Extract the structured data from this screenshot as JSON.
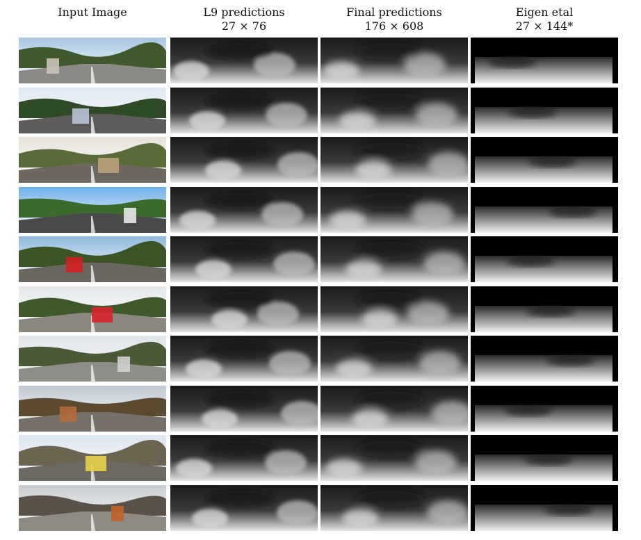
{
  "columns": [
    {
      "id": "input",
      "title": "Input Image",
      "subtitle": ""
    },
    {
      "id": "l9",
      "title": "L9 predictions",
      "subtitle": "27 × 76"
    },
    {
      "id": "final",
      "title": "Final predictions",
      "subtitle": "176 × 608"
    },
    {
      "id": "eigen",
      "title": "Eigen etal",
      "subtitle": "27 × 144*"
    }
  ],
  "rows": [
    {
      "sky": "#a9c6e2",
      "ground": "#8c8a86",
      "veg": "#3f5a2e",
      "accent": "#c9c3b8"
    },
    {
      "sky": "#dfe8f2",
      "ground": "#5e5c5a",
      "veg": "#2f4a26",
      "accent": "#b9c4d6"
    },
    {
      "sky": "#e6e2da",
      "ground": "#6d675f",
      "veg": "#5a6b3a",
      "accent": "#b8a27a"
    },
    {
      "sky": "#6fb0e8",
      "ground": "#4a4a4c",
      "veg": "#3b6a2c",
      "accent": "#e8e8e8"
    },
    {
      "sky": "#8fb8dd",
      "ground": "#6a6760",
      "veg": "#3a5426",
      "accent": "#d22020"
    },
    {
      "sky": "#e5e8ea",
      "ground": "#8a877f",
      "veg": "#3e5a2c",
      "accent": "#d8242c"
    },
    {
      "sky": "#dfe4e8",
      "ground": "#8f8d87",
      "veg": "#4a5a36",
      "accent": "#d0d0d0"
    },
    {
      "sky": "#bfc8d2",
      "ground": "#777068",
      "veg": "#5b4a30",
      "accent": "#b26a3a"
    },
    {
      "sky": "#dce4ec",
      "ground": "#6c6862",
      "veg": "#6a6450",
      "accent": "#e8d04a"
    },
    {
      "sky": "#c8ccd0",
      "ground": "#8e8a84",
      "veg": "#5a5248",
      "accent": "#c0622a"
    }
  ]
}
